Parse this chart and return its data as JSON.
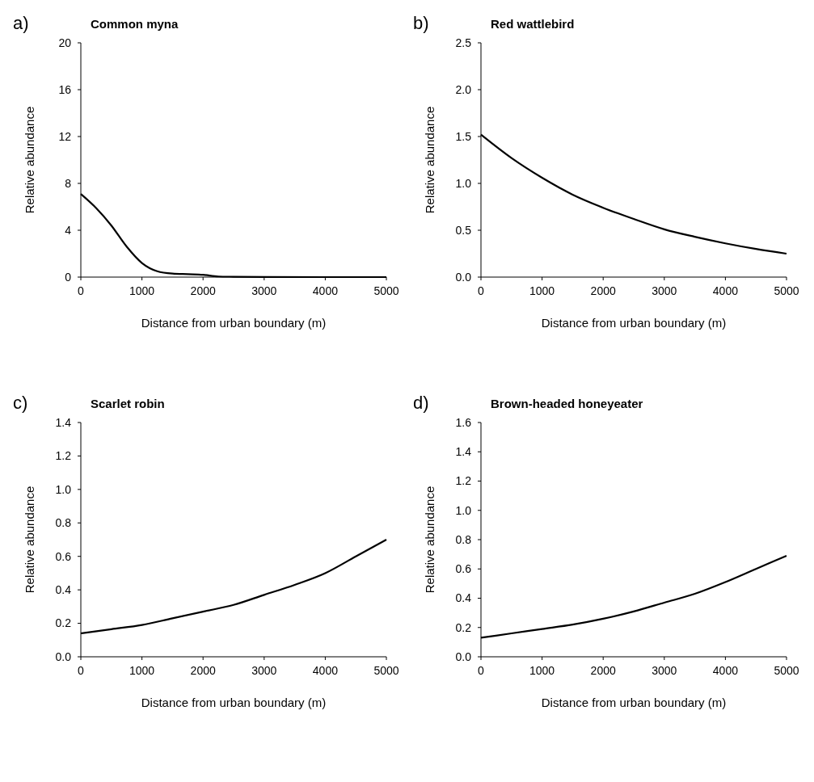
{
  "chart_data": [
    {
      "type": "line",
      "title": "Common myna",
      "annotations": [
        "a)"
      ],
      "xlabel": "Distance from urban boundary (m)",
      "ylabel": "Relative abundance",
      "xlim": [
        0,
        5000
      ],
      "xticks": [
        0,
        1000,
        2000,
        3000,
        4000,
        5000
      ],
      "ylim": [
        0,
        20
      ],
      "yticks": [
        0,
        4,
        8,
        12,
        16,
        20
      ],
      "grid": false,
      "marker": "none",
      "line_style": "solid",
      "series": [
        {
          "color": "#000000",
          "x": [
            0,
            250,
            500,
            750,
            1000,
            1250,
            1500,
            1750,
            2000,
            2250,
            2500,
            3000,
            4000,
            5000
          ],
          "values": [
            7.1,
            5.9,
            4.4,
            2.6,
            1.2,
            0.5,
            0.3,
            0.25,
            0.2,
            0.05,
            0.03,
            0.01,
            0,
            0
          ]
        }
      ]
    },
    {
      "type": "line",
      "title": "Red wattlebird",
      "annotations": [
        "b)"
      ],
      "xlabel": "Distance from urban boundary (m)",
      "ylabel": "Relative abundance",
      "xlim": [
        0,
        5000
      ],
      "xticks": [
        0,
        1000,
        2000,
        3000,
        4000,
        5000
      ],
      "ylim": [
        0,
        2.5
      ],
      "yticks": [
        {
          "value": 0,
          "label": "0.0"
        },
        {
          "value": 0.5,
          "label": "0.5"
        },
        {
          "value": 1,
          "label": "1.0"
        },
        {
          "value": 1.5,
          "label": "1.5"
        },
        {
          "value": 2,
          "label": "2.0"
        },
        {
          "value": 2.5,
          "label": "2.5"
        }
      ],
      "grid": false,
      "marker": "none",
      "line_style": "solid",
      "series": [
        {
          "color": "#000000",
          "x": [
            0,
            500,
            1000,
            1500,
            2000,
            2500,
            3000,
            3500,
            4000,
            4500,
            5000
          ],
          "values": [
            1.52,
            1.27,
            1.06,
            0.88,
            0.74,
            0.62,
            0.51,
            0.43,
            0.36,
            0.3,
            0.25
          ]
        }
      ]
    },
    {
      "type": "line",
      "title": "Scarlet robin",
      "annotations": [
        "c)"
      ],
      "xlabel": "Distance from urban boundary (m)",
      "ylabel": "Relative abundance",
      "xlim": [
        0,
        5000
      ],
      "xticks": [
        0,
        1000,
        2000,
        3000,
        4000,
        5000
      ],
      "ylim": [
        0,
        1.4
      ],
      "yticks": [
        {
          "value": 0,
          "label": "0.0"
        },
        0.2,
        0.4,
        0.6,
        0.8,
        {
          "value": 1,
          "label": "1.0"
        },
        1.2,
        1.4
      ],
      "grid": false,
      "marker": "none",
      "line_style": "solid",
      "series": [
        {
          "color": "#000000",
          "x": [
            0,
            500,
            1000,
            1500,
            2000,
            2500,
            3000,
            3500,
            4000,
            4500,
            5000
          ],
          "values": [
            0.14,
            0.165,
            0.19,
            0.23,
            0.27,
            0.31,
            0.37,
            0.43,
            0.5,
            0.6,
            0.7
          ]
        }
      ]
    },
    {
      "type": "line",
      "title": "Brown-headed honeyeater",
      "annotations": [
        "d)"
      ],
      "xlabel": "Distance from urban boundary (m)",
      "ylabel": "Relative abundance",
      "xlim": [
        0,
        5000
      ],
      "xticks": [
        0,
        1000,
        2000,
        3000,
        4000,
        5000
      ],
      "ylim": [
        0,
        1.6
      ],
      "yticks": [
        {
          "value": 0,
          "label": "0.0"
        },
        0.2,
        0.4,
        0.6,
        0.8,
        {
          "value": 1,
          "label": "1.0"
        },
        1.2,
        1.4,
        1.6
      ],
      "grid": false,
      "marker": "none",
      "line_style": "solid",
      "series": [
        {
          "color": "#000000",
          "x": [
            0,
            500,
            1000,
            1500,
            2000,
            2500,
            3000,
            3500,
            4000,
            4500,
            5000
          ],
          "values": [
            0.13,
            0.16,
            0.19,
            0.22,
            0.26,
            0.31,
            0.37,
            0.43,
            0.51,
            0.6,
            0.69
          ]
        }
      ]
    }
  ]
}
